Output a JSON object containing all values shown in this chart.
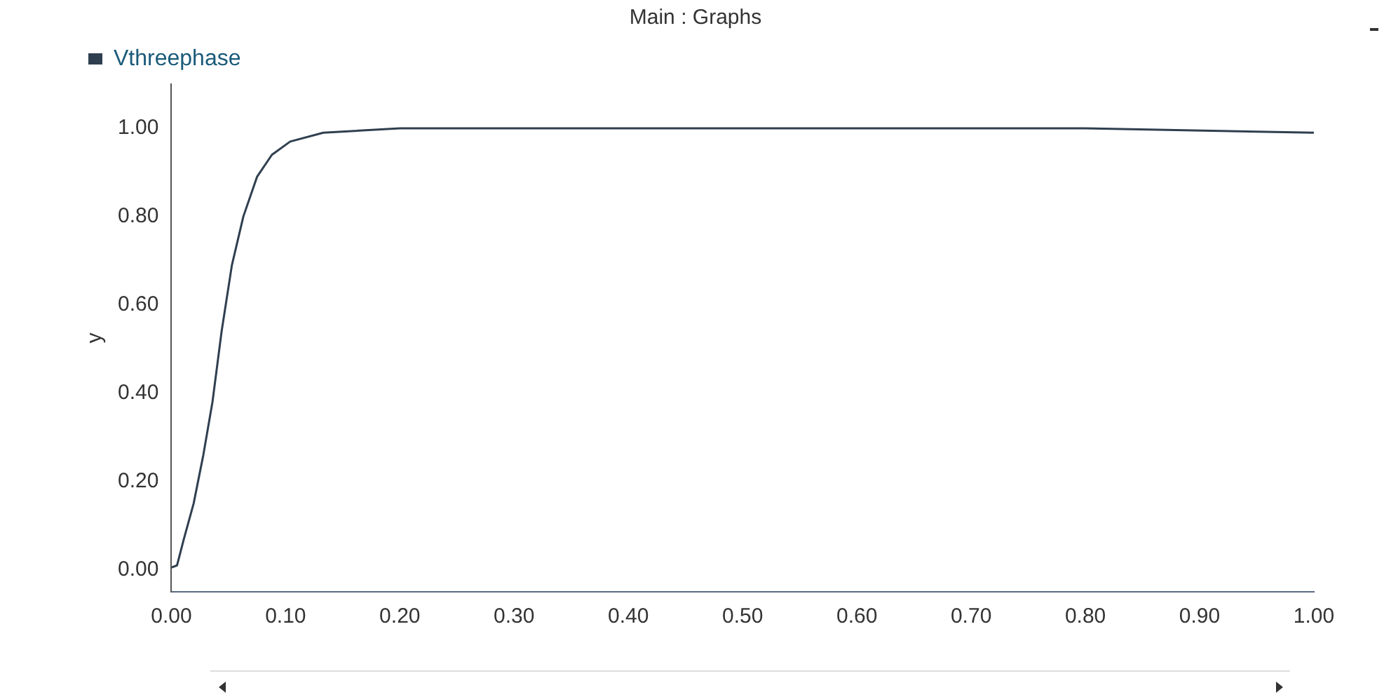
{
  "chart_data": {
    "type": "line",
    "title": "Main : Graphs",
    "ylabel": "y",
    "xlim": [
      0,
      1
    ],
    "xticks": [
      {
        "value": 0,
        "label": "0.00"
      },
      {
        "value": 0.1,
        "label": "0.10"
      },
      {
        "value": 0.2,
        "label": "0.20"
      },
      {
        "value": 0.3,
        "label": "0.30"
      },
      {
        "value": 0.4,
        "label": "0.40"
      },
      {
        "value": 0.5,
        "label": "0.50"
      },
      {
        "value": 0.6,
        "label": "0.60"
      },
      {
        "value": 0.7,
        "label": "0.70"
      },
      {
        "value": 0.8,
        "label": "0.80"
      },
      {
        "value": 0.9,
        "label": "0.90"
      },
      {
        "value": 1,
        "label": "1.00"
      }
    ],
    "ylim": [
      -0.05,
      1.1
    ],
    "yticks": [
      {
        "value": 0,
        "label": "0.00"
      },
      {
        "value": 0.2,
        "label": "0.20"
      },
      {
        "value": 0.4,
        "label": "0.40"
      },
      {
        "value": 0.6,
        "label": "0.60"
      },
      {
        "value": 0.8,
        "label": "0.80"
      },
      {
        "value": 1,
        "label": "1.00"
      }
    ],
    "x": [
      0,
      0.005,
      0.011,
      0.0195,
      0.028,
      0.036,
      0.044,
      0.053,
      0.063,
      0.075,
      0.088,
      0.104,
      0.133,
      0.2,
      0.4,
      0.6,
      0.8,
      1.0
    ],
    "series": [
      {
        "name": "Vthreephase",
        "color": "#2f3f4f",
        "values": [
          0.005,
          0.01,
          0.07,
          0.15,
          0.26,
          0.38,
          0.54,
          0.69,
          0.8,
          0.89,
          0.94,
          0.97,
          0.99,
          1.0,
          1.0,
          1.0,
          1.0,
          0.99
        ]
      }
    ],
    "grid": false,
    "legend": "top left",
    "marker": "none",
    "line_style": "solid"
  }
}
